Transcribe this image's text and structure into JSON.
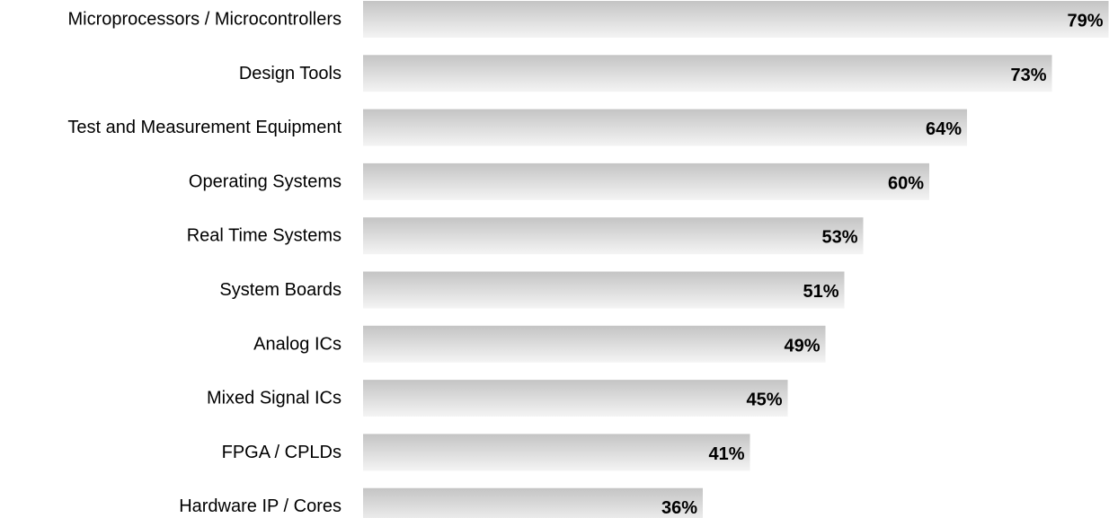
{
  "chart_data": {
    "type": "bar",
    "orientation": "horizontal",
    "categories": [
      "Microprocessors / Microcontrollers",
      "Design Tools",
      "Test and Measurement Equipment",
      "Operating Systems",
      "Real Time Systems",
      "System Boards",
      "Analog ICs",
      "Mixed Signal ICs",
      "FPGA / CPLDs",
      "Hardware IP / Cores"
    ],
    "values": [
      79,
      73,
      64,
      60,
      53,
      51,
      49,
      45,
      41,
      36
    ],
    "value_labels": [
      "79%",
      "73%",
      "64%",
      "60%",
      "53%",
      "51%",
      "49%",
      "45%",
      "41%",
      "36%"
    ],
    "unit": "%",
    "xlim": [
      0,
      100
    ],
    "grid": false,
    "legend": "none",
    "colors": {
      "bar_top": "#c4c4c4",
      "bar_bottom": "#f4f4f4",
      "text": "#000000"
    }
  }
}
